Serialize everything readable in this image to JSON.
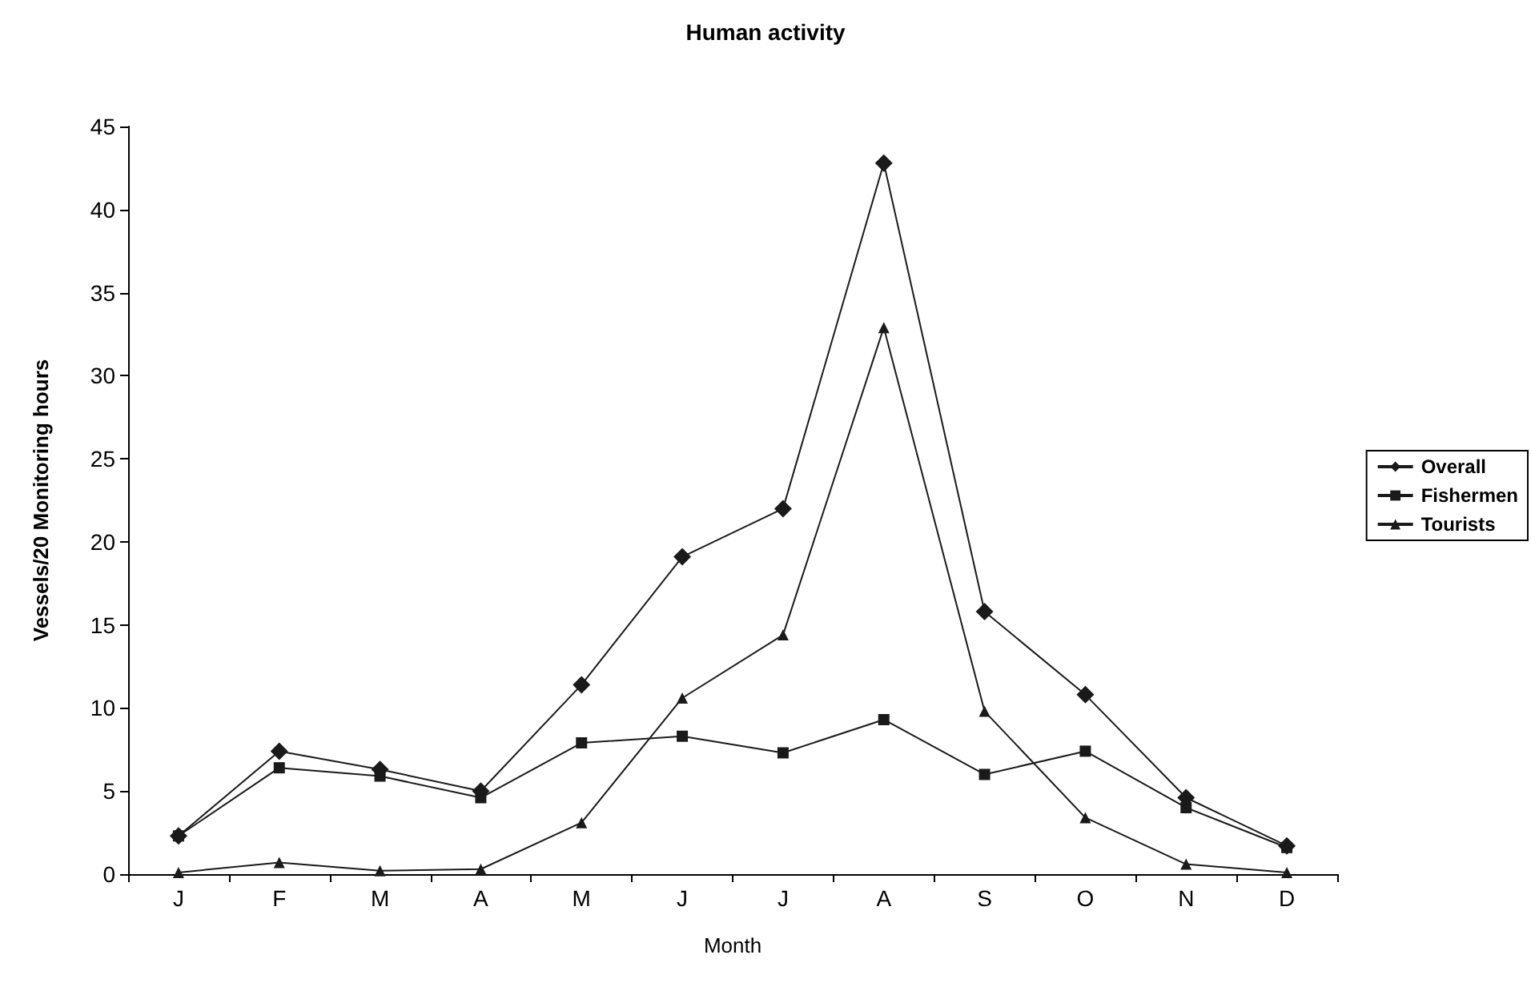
{
  "chart_data": {
    "type": "line",
    "title": "Human activity",
    "xlabel": "Month",
    "ylabel": "Vessels/20 Monitoring hours",
    "categories": [
      "J",
      "F",
      "M",
      "A",
      "M",
      "J",
      "J",
      "A",
      "S",
      "O",
      "N",
      "D"
    ],
    "series": [
      {
        "name": "Overall",
        "color": "#1a1a1a",
        "marker": "diamond",
        "values": [
          2.3,
          7.4,
          6.3,
          5.0,
          11.4,
          19.1,
          22.0,
          42.8,
          15.8,
          10.8,
          4.6,
          1.7
        ]
      },
      {
        "name": "Fishermen",
        "color": "#1a1a1a",
        "marker": "square",
        "values": [
          2.3,
          6.4,
          5.9,
          4.6,
          7.9,
          8.3,
          7.3,
          9.3,
          6.0,
          7.4,
          4.0,
          1.6
        ]
      },
      {
        "name": "Tourists",
        "color": "#1a1a1a",
        "marker": "triangle",
        "values": [
          0.1,
          0.7,
          0.2,
          0.3,
          3.1,
          10.6,
          14.4,
          32.9,
          9.8,
          3.4,
          0.6,
          0.1
        ]
      }
    ],
    "ylim": [
      0,
      45
    ],
    "yticks": [
      0,
      5,
      10,
      15,
      20,
      25,
      30,
      35,
      40,
      45
    ],
    "grid": false,
    "legend": "right",
    "line_style": "solid"
  }
}
